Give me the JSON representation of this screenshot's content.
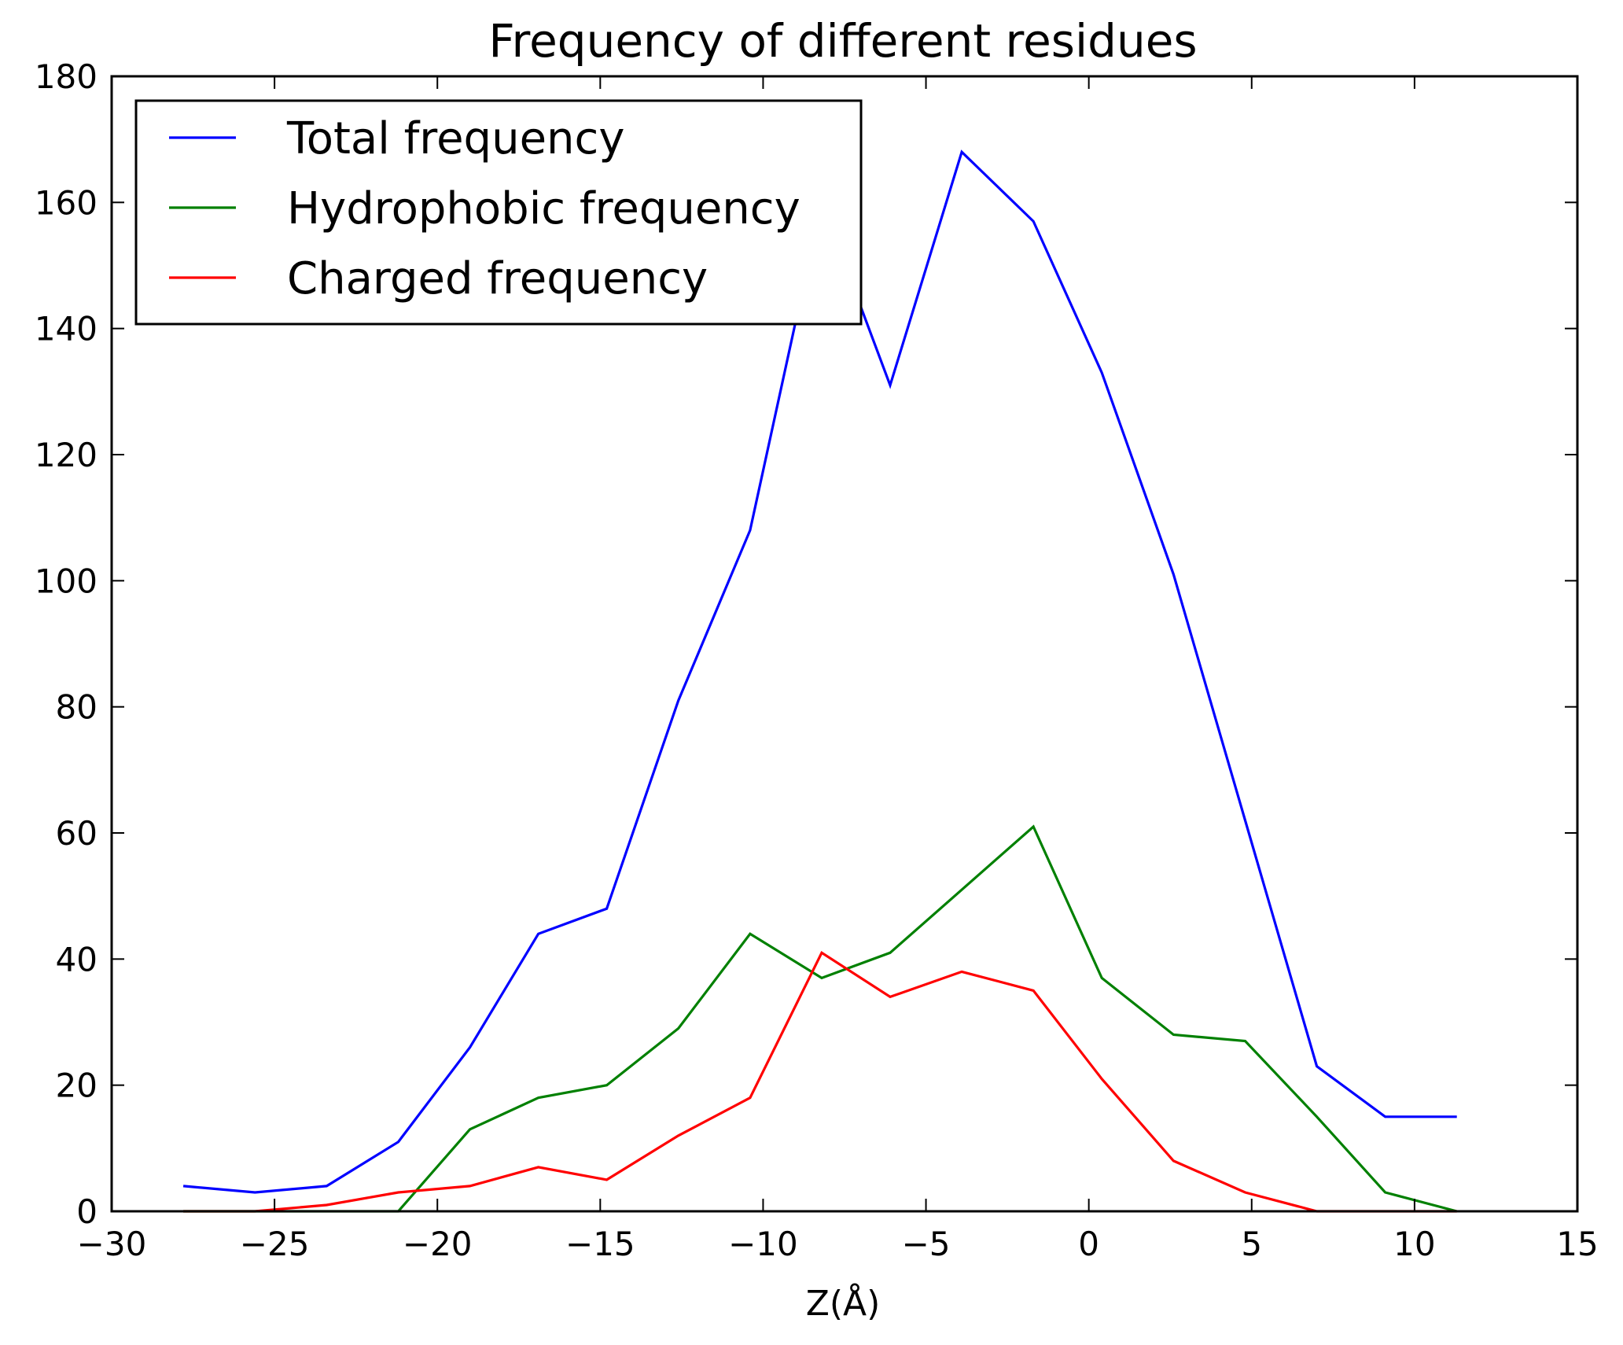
{
  "chart_data": {
    "type": "line",
    "title": "Frequency of different residues",
    "xlabel": "Z(Å)",
    "ylabel": "",
    "xlim": [
      -30,
      15
    ],
    "ylim": [
      0,
      180
    ],
    "xticks": [
      -30,
      -25,
      -20,
      -15,
      -10,
      -5,
      0,
      5,
      10,
      15
    ],
    "xtick_labels": [
      "−30",
      "−25",
      "−20",
      "−15",
      "−10",
      "−5",
      "0",
      "5",
      "10",
      "15"
    ],
    "yticks": [
      0,
      20,
      40,
      60,
      80,
      100,
      120,
      140,
      160,
      180
    ],
    "ytick_labels": [
      "0",
      "20",
      "40",
      "60",
      "80",
      "100",
      "120",
      "140",
      "160",
      "180"
    ],
    "grid": false,
    "legend_position": "top-left",
    "x": [
      -27.8,
      -25.6,
      -23.4,
      -21.2,
      -19.0,
      -16.9,
      -14.8,
      -12.6,
      -10.4,
      -8.2,
      -6.1,
      -3.9,
      -1.7,
      0.4,
      2.6,
      4.8,
      7.0,
      9.1,
      11.3
    ],
    "series": [
      {
        "name": "Total frequency",
        "color": "#0000ff",
        "values": [
          4,
          3,
          4,
          11,
          26,
          44,
          48,
          81,
          108,
          160,
          131,
          168,
          157,
          133,
          101,
          62,
          23,
          15,
          15
        ]
      },
      {
        "name": "Hydrophobic frequency",
        "color": "#008000",
        "values": [
          0,
          0,
          0,
          0,
          13,
          18,
          20,
          29,
          44,
          37,
          41,
          51,
          61,
          37,
          28,
          27,
          15,
          3,
          0
        ]
      },
      {
        "name": "Charged frequency",
        "color": "#ff0000",
        "values": [
          0,
          0,
          1,
          3,
          4,
          7,
          5,
          12,
          18,
          41,
          34,
          38,
          35,
          21,
          8,
          3,
          0,
          0,
          0
        ]
      }
    ]
  }
}
